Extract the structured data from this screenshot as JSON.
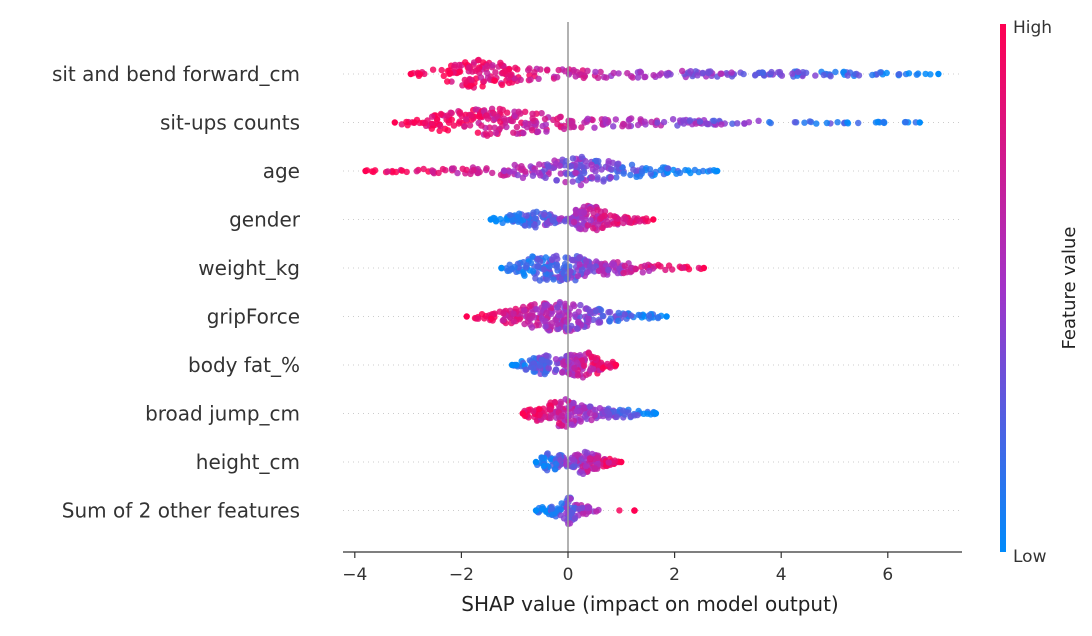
{
  "chart_data": {
    "type": "scatter",
    "subtype": "shap-beeswarm",
    "title": "",
    "xlabel": "SHAP value (impact on model output)",
    "ylabel": "",
    "xlim": [
      -4.4,
      7.5
    ],
    "xticks": [
      -4,
      -2,
      0,
      2,
      4,
      6
    ],
    "xtick_labels": [
      "−4",
      "−2",
      "0",
      "2",
      "4",
      "6"
    ],
    "features": [
      {
        "name": "sit and bend forward_cm",
        "min": -2.95,
        "max": 6.95,
        "density": [
          [
            -2.9,
            0.08
          ],
          [
            -2.5,
            0.35
          ],
          [
            -2.0,
            0.8
          ],
          [
            -1.6,
            1.0
          ],
          [
            -1.2,
            0.75
          ],
          [
            -0.8,
            0.45
          ],
          [
            -0.3,
            0.35
          ],
          [
            0.5,
            0.28
          ],
          [
            1.5,
            0.22
          ],
          [
            2.5,
            0.2
          ],
          [
            3.5,
            0.18
          ],
          [
            4.5,
            0.17
          ],
          [
            5.5,
            0.14
          ],
          [
            6.3,
            0.08
          ],
          [
            6.95,
            0.03
          ]
        ],
        "color_trend": "high-left"
      },
      {
        "name": "sit-ups counts",
        "min": -3.25,
        "max": 6.6,
        "density": [
          [
            -3.25,
            0.05
          ],
          [
            -2.8,
            0.3
          ],
          [
            -2.2,
            0.75
          ],
          [
            -1.6,
            1.0
          ],
          [
            -1.0,
            0.85
          ],
          [
            -0.5,
            0.65
          ],
          [
            0.0,
            0.45
          ],
          [
            0.8,
            0.32
          ],
          [
            1.6,
            0.25
          ],
          [
            2.5,
            0.18
          ],
          [
            3.5,
            0.12
          ],
          [
            4.5,
            0.08
          ],
          [
            5.5,
            0.05
          ],
          [
            6.6,
            0.03
          ]
        ],
        "color_trend": "high-left"
      },
      {
        "name": "age",
        "min": -3.8,
        "max": 2.8,
        "density": [
          [
            -3.8,
            0.05
          ],
          [
            -3.0,
            0.12
          ],
          [
            -2.0,
            0.2
          ],
          [
            -1.2,
            0.35
          ],
          [
            -0.5,
            0.6
          ],
          [
            0.0,
            0.8
          ],
          [
            0.3,
            1.0
          ],
          [
            0.7,
            0.7
          ],
          [
            1.2,
            0.45
          ],
          [
            1.8,
            0.25
          ],
          [
            2.4,
            0.12
          ],
          [
            2.8,
            0.05
          ]
        ],
        "color_trend": "high-left"
      },
      {
        "name": "gender",
        "min": -1.45,
        "max": 1.6,
        "density": [
          [
            -1.45,
            0.1
          ],
          [
            -1.0,
            0.35
          ],
          [
            -0.6,
            0.55
          ],
          [
            -0.3,
            0.35
          ],
          [
            -0.05,
            0.2
          ],
          [
            0.15,
            0.65
          ],
          [
            0.4,
            1.0
          ],
          [
            0.7,
            0.6
          ],
          [
            1.1,
            0.25
          ],
          [
            1.6,
            0.08
          ]
        ],
        "color_trend": "high-right"
      },
      {
        "name": "weight_kg",
        "min": -1.25,
        "max": 2.55,
        "density": [
          [
            -1.25,
            0.1
          ],
          [
            -0.9,
            0.4
          ],
          [
            -0.6,
            0.9
          ],
          [
            -0.3,
            0.75
          ],
          [
            0.0,
            1.0
          ],
          [
            0.4,
            0.55
          ],
          [
            0.9,
            0.4
          ],
          [
            1.5,
            0.28
          ],
          [
            2.0,
            0.15
          ],
          [
            2.55,
            0.05
          ]
        ],
        "color_trend": "high-right"
      },
      {
        "name": "gripForce",
        "min": -1.9,
        "max": 1.85,
        "density": [
          [
            -1.9,
            0.05
          ],
          [
            -1.4,
            0.3
          ],
          [
            -0.9,
            0.65
          ],
          [
            -0.5,
            0.9
          ],
          [
            0.0,
            1.0
          ],
          [
            0.4,
            0.6
          ],
          [
            0.9,
            0.35
          ],
          [
            1.4,
            0.22
          ],
          [
            1.85,
            0.06
          ]
        ],
        "color_trend": "high-left"
      },
      {
        "name": "body fat_%",
        "min": -1.05,
        "max": 0.9,
        "density": [
          [
            -1.05,
            0.12
          ],
          [
            -0.7,
            0.4
          ],
          [
            -0.45,
            0.7
          ],
          [
            -0.2,
            0.4
          ],
          [
            0.05,
            0.7
          ],
          [
            0.3,
            0.95
          ],
          [
            0.55,
            0.6
          ],
          [
            0.9,
            0.12
          ]
        ],
        "color_trend": "high-right"
      },
      {
        "name": "broad jump_cm",
        "min": -0.85,
        "max": 1.65,
        "density": [
          [
            -0.85,
            0.15
          ],
          [
            -0.5,
            0.6
          ],
          [
            -0.2,
            0.85
          ],
          [
            0.0,
            1.0
          ],
          [
            0.3,
            0.5
          ],
          [
            0.7,
            0.35
          ],
          [
            1.2,
            0.25
          ],
          [
            1.65,
            0.08
          ]
        ],
        "color_trend": "high-left"
      },
      {
        "name": "height_cm",
        "min": -0.6,
        "max": 1.0,
        "density": [
          [
            -0.6,
            0.15
          ],
          [
            -0.35,
            0.65
          ],
          [
            -0.15,
            0.5
          ],
          [
            0.05,
            0.25
          ],
          [
            0.25,
            0.85
          ],
          [
            0.5,
            0.5
          ],
          [
            0.8,
            0.2
          ],
          [
            1.0,
            0.08
          ]
        ],
        "color_trend": "high-right"
      },
      {
        "name": "Sum of 2 other features",
        "min": -0.6,
        "max": 1.25,
        "density": [
          [
            -0.6,
            0.15
          ],
          [
            -0.3,
            0.35
          ],
          [
            -0.05,
            0.6
          ],
          [
            0.0,
            1.0
          ],
          [
            0.15,
            0.55
          ],
          [
            0.35,
            0.3
          ],
          [
            0.6,
            0.12
          ],
          [
            0.65,
            0.0
          ],
          [
            1.25,
            0.03
          ]
        ],
        "color_trend": "high-right"
      }
    ],
    "colorbar": {
      "title": "Feature value",
      "high_label": "High",
      "low_label": "Low",
      "high_color": "#ff0052",
      "low_color": "#008bfb"
    },
    "zero_line": true
  }
}
